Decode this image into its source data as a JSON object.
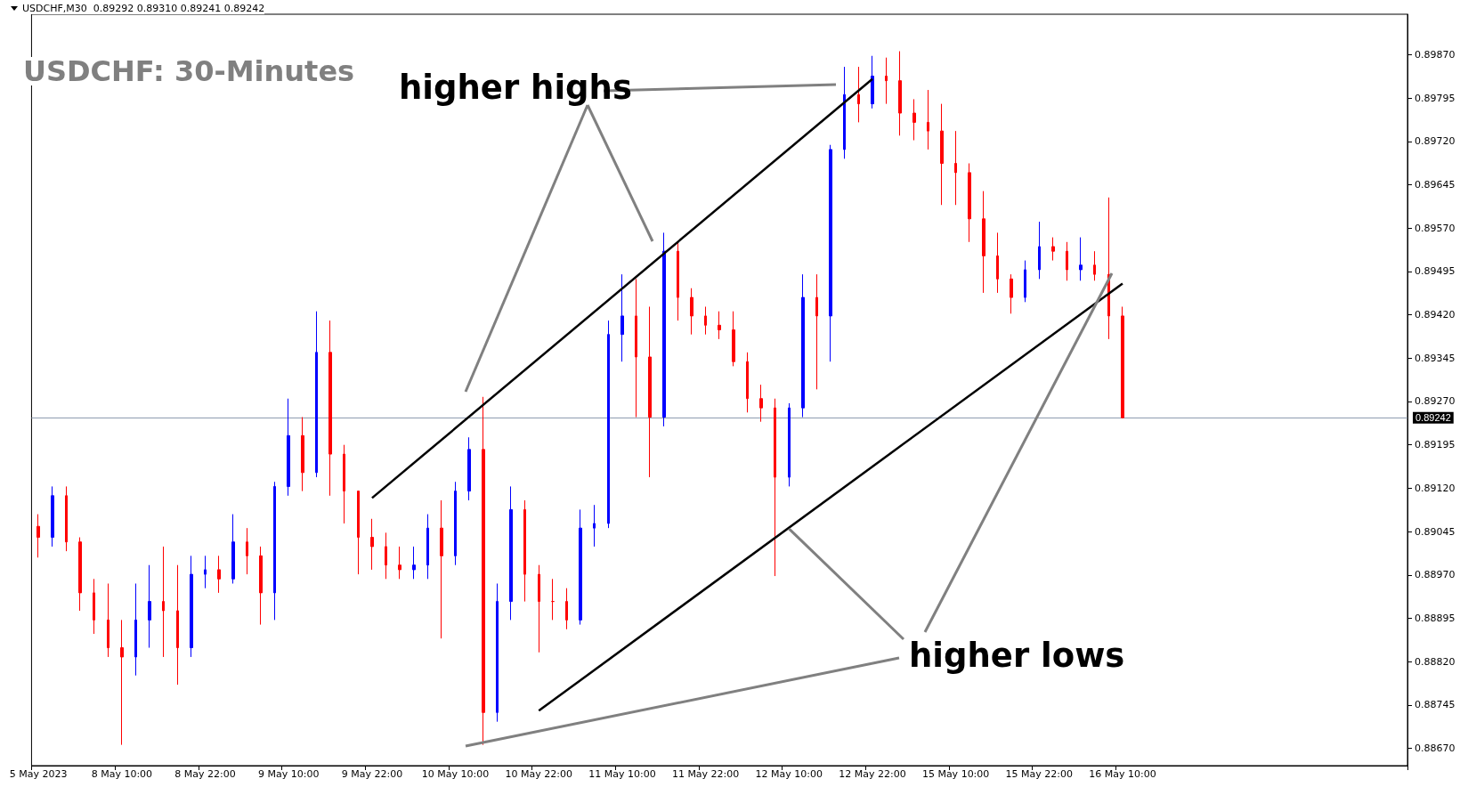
{
  "chart_data": {
    "type": "candlestick",
    "title": "USDCHF: 30-Minutes",
    "annotations": [
      "USDCHF,M30  0.89292 0.89310 0.89241 0.89242",
      "higher highs",
      {
        "text": "higher lows",
        "x": "12 May 10:00",
        "y": 0.8905
      }
    ],
    "categories": [
      "5 May 2023",
      null,
      null,
      null,
      null,
      null,
      "8 May 10:00",
      null,
      null,
      null,
      null,
      null,
      "8 May 22:00",
      null,
      null,
      null,
      null,
      null,
      "9 May 10:00",
      null,
      null,
      null,
      null,
      null,
      "9 May 22:00",
      null,
      null,
      null,
      null,
      null,
      "10 May 10:00",
      null,
      null,
      null,
      null,
      null,
      "10 May 22:00",
      null,
      null,
      null,
      null,
      null,
      "11 May 10:00",
      null,
      null,
      null,
      null,
      null,
      "11 May 22:00",
      null,
      null,
      null,
      null,
      null,
      "12 May 10:00",
      null,
      null,
      null,
      null,
      null,
      "12 May 22:00",
      null,
      null,
      null,
      null,
      null,
      "15 May 10:00",
      null,
      null,
      null,
      null,
      null,
      "15 May 22:00",
      null,
      null,
      null,
      null,
      null,
      "16 May 10:00",
      null,
      null,
      null,
      null,
      null,
      null,
      null,
      null,
      null,
      null,
      null,
      null,
      null,
      null,
      null,
      null,
      null,
      null,
      null,
      null
    ],
    "ohlc": [
      [
        0.89054,
        0.89075,
        0.89,
        0.89035
      ],
      [
        0.89035,
        0.89123,
        0.89019,
        0.89107
      ],
      [
        0.89107,
        0.89123,
        0.89011,
        0.89027
      ],
      [
        0.89027,
        0.89035,
        0.88908,
        0.88939
      ],
      [
        0.88939,
        0.88963,
        0.88868,
        0.88892
      ],
      [
        0.88892,
        0.88955,
        0.88828,
        0.88844
      ],
      [
        0.88844,
        0.88892,
        0.88676,
        0.88828
      ],
      [
        0.88828,
        0.88955,
        0.88796,
        0.88892
      ],
      [
        0.88892,
        0.88987,
        0.88844,
        0.88924
      ],
      [
        0.88924,
        0.89019,
        0.88828,
        0.88908
      ],
      [
        0.88908,
        0.88987,
        0.8878,
        0.88844
      ],
      [
        0.88844,
        0.89003,
        0.88828,
        0.88971
      ],
      [
        0.88971,
        0.89003,
        0.88947,
        0.88979
      ],
      [
        0.88979,
        0.89003,
        0.88939,
        0.88963
      ],
      [
        0.88963,
        0.89075,
        0.88955,
        0.89027
      ],
      [
        0.89027,
        0.89051,
        0.88971,
        0.89003
      ],
      [
        0.89003,
        0.89019,
        0.88884,
        0.88939
      ],
      [
        0.88939,
        0.89131,
        0.88892,
        0.89123
      ],
      [
        0.89123,
        0.89275,
        0.89107,
        0.89211
      ],
      [
        0.89211,
        0.89243,
        0.89115,
        0.89147
      ],
      [
        0.89147,
        0.89426,
        0.89139,
        0.89355
      ],
      [
        0.89355,
        0.8941,
        0.89107,
        0.89179
      ],
      [
        0.89179,
        0.89195,
        0.89059,
        0.89115
      ],
      [
        0.89115,
        0.89115,
        0.88971,
        0.89035
      ],
      [
        0.89035,
        0.89067,
        0.88979,
        0.89019
      ],
      [
        0.89019,
        0.89043,
        0.88963,
        0.88987
      ],
      [
        0.88987,
        0.89019,
        0.88963,
        0.88979
      ],
      [
        0.88979,
        0.89019,
        0.88963,
        0.88987
      ],
      [
        0.88987,
        0.89075,
        0.88963,
        0.89051
      ],
      [
        0.89051,
        0.89099,
        0.8886,
        0.89003
      ],
      [
        0.89003,
        0.89131,
        0.88987,
        0.89115
      ],
      [
        0.89115,
        0.89208,
        0.89099,
        0.89187
      ],
      [
        0.89187,
        0.89278,
        0.88676,
        0.88732
      ],
      [
        0.88732,
        0.88955,
        0.88716,
        0.88924
      ],
      [
        0.88924,
        0.89123,
        0.88892,
        0.89083
      ],
      [
        0.89083,
        0.89099,
        0.88924,
        0.88971
      ],
      [
        0.88971,
        0.88987,
        0.88836,
        0.88924
      ],
      [
        0.88924,
        0.88963,
        0.88892,
        0.88924
      ],
      [
        0.88924,
        0.88947,
        0.88876,
        0.88892
      ],
      [
        0.88892,
        0.89083,
        0.88884,
        0.89051
      ],
      [
        0.89051,
        0.89091,
        0.89019,
        0.89059
      ],
      [
        0.89059,
        0.8941,
        0.89051,
        0.89386
      ],
      [
        0.89386,
        0.8949,
        0.89339,
        0.89418
      ],
      [
        0.89418,
        0.89482,
        0.89243,
        0.89347
      ],
      [
        0.89347,
        0.89434,
        0.89139,
        0.89243
      ],
      [
        0.89243,
        0.89562,
        0.89227,
        0.8953
      ],
      [
        0.8953,
        0.89546,
        0.8941,
        0.8945
      ],
      [
        0.8945,
        0.89466,
        0.89386,
        0.89418
      ],
      [
        0.89418,
        0.89434,
        0.89386,
        0.89402
      ],
      [
        0.89402,
        0.89426,
        0.89378,
        0.89394
      ],
      [
        0.89394,
        0.89426,
        0.89331,
        0.89339
      ],
      [
        0.89339,
        0.89355,
        0.89251,
        0.89275
      ],
      [
        0.89275,
        0.89299,
        0.89235,
        0.89259
      ],
      [
        0.89259,
        0.89275,
        0.88968,
        0.89139
      ],
      [
        0.89139,
        0.89267,
        0.89123,
        0.89259
      ],
      [
        0.89259,
        0.8949,
        0.89243,
        0.8945
      ],
      [
        0.8945,
        0.8949,
        0.89291,
        0.89418
      ],
      [
        0.89418,
        0.89714,
        0.89339,
        0.89706
      ],
      [
        0.89706,
        0.89849,
        0.8969,
        0.89801
      ],
      [
        0.89801,
        0.89849,
        0.89753,
        0.89785
      ],
      [
        0.89785,
        0.89868,
        0.89777,
        0.89833
      ],
      [
        0.89833,
        0.89865,
        0.89785,
        0.89825
      ],
      [
        0.89825,
        0.89876,
        0.8973,
        0.89769
      ],
      [
        0.89769,
        0.89793,
        0.89722,
        0.89753
      ],
      [
        0.89753,
        0.89809,
        0.89706,
        0.89738
      ],
      [
        0.89738,
        0.89785,
        0.8961,
        0.89682
      ],
      [
        0.89682,
        0.89738,
        0.8961,
        0.89666
      ],
      [
        0.89666,
        0.89682,
        0.89546,
        0.89586
      ],
      [
        0.89586,
        0.89634,
        0.89458,
        0.89522
      ],
      [
        0.89522,
        0.89562,
        0.89458,
        0.89482
      ],
      [
        0.89482,
        0.8949,
        0.89422,
        0.8945
      ],
      [
        0.8945,
        0.89514,
        0.89442,
        0.89498
      ],
      [
        0.89498,
        0.89581,
        0.89482,
        0.89538
      ],
      [
        0.89538,
        0.89554,
        0.89514,
        0.8953
      ],
      [
        0.8953,
        0.89546,
        0.89479,
        0.89498
      ],
      [
        0.89498,
        0.89554,
        0.89479,
        0.89506
      ],
      [
        0.89506,
        0.8953,
        0.89479,
        0.8949
      ],
      [
        0.8949,
        0.89623,
        0.89378,
        0.89418
      ],
      [
        0.89418,
        0.89434,
        0.89241,
        0.89242
      ],
      null,
      null,
      null,
      null,
      null,
      null,
      null,
      null,
      null,
      null,
      null,
      null,
      null,
      null,
      null,
      null,
      null,
      null,
      null,
      null
    ],
    "colors": [
      "#ff0000",
      "#0000ff",
      "#ff0000",
      "#ff0000",
      "#ff0000",
      "#ff0000",
      "#ff0000",
      "#0000ff",
      "#0000ff",
      "#ff0000",
      "#ff0000",
      "#0000ff",
      "#0000ff",
      "#ff0000",
      "#0000ff",
      "#ff0000",
      "#ff0000",
      "#0000ff",
      "#0000ff",
      "#ff0000",
      "#0000ff",
      "#ff0000",
      "#ff0000",
      "#ff0000",
      "#ff0000",
      "#ff0000",
      "#ff0000",
      "#0000ff",
      "#0000ff",
      "#ff0000",
      "#0000ff",
      "#0000ff",
      "#ff0000",
      "#0000ff",
      "#0000ff",
      "#ff0000",
      "#ff0000",
      "#ff0000",
      "#ff0000",
      "#0000ff",
      "#0000ff",
      "#0000ff",
      "#0000ff",
      "#ff0000",
      "#ff0000",
      "#0000ff",
      "#ff0000",
      "#ff0000",
      "#ff0000",
      "#ff0000",
      "#ff0000",
      "#ff0000",
      "#ff0000",
      "#ff0000",
      "#0000ff",
      "#0000ff",
      "#ff0000",
      "#0000ff",
      "#0000ff",
      "#ff0000",
      "#0000ff",
      "#ff0000",
      "#ff0000",
      "#ff0000",
      "#ff0000",
      "#ff0000",
      "#ff0000",
      "#ff0000",
      "#ff0000",
      "#ff0000",
      "#ff0000",
      "#0000ff",
      "#0000ff",
      "#ff0000",
      "#ff0000",
      "#0000ff",
      "#ff0000",
      "#ff0000",
      "#ff0000",
      null,
      null,
      null,
      null,
      null,
      null,
      null,
      null,
      null,
      null,
      null,
      null,
      null,
      null,
      null,
      null,
      null,
      null,
      null,
      null
    ],
    "series": [
      {
        "type": "line",
        "color": "#000000",
        "x": [
          "9 May 22:00",
          "12 May 22:00"
        ],
        "values": [
          0.89103,
          0.89828
        ]
      },
      {
        "type": "line",
        "color": "#000000",
        "x": [
          "10 May 22:00",
          "16 May 10:00"
        ],
        "values": [
          0.88735,
          0.89474
        ]
      }
    ],
    "ylim": [
      0.8864,
      0.8994
    ],
    "yticks": [
      {
        "value": 0.8867,
        "label": "0.88670"
      },
      {
        "value": 0.88745,
        "label": "0.88745"
      },
      {
        "value": 0.8882,
        "label": "0.88820"
      },
      {
        "value": 0.88895,
        "label": "0.88895"
      },
      {
        "value": 0.8897,
        "label": "0.88970"
      },
      {
        "value": 0.89045,
        "label": "0.89045"
      },
      {
        "value": 0.8912,
        "label": "0.89120"
      },
      {
        "value": 0.89195,
        "label": "0.89195"
      },
      {
        "value": 0.8927,
        "label": "0.89270"
      },
      {
        "value": 0.89345,
        "label": "0.89345"
      },
      {
        "value": 0.8942,
        "label": "0.89420"
      },
      {
        "value": 0.89495,
        "label": "0.89495"
      },
      {
        "value": 0.8957,
        "label": "0.89570"
      },
      {
        "value": 0.89645,
        "label": "0.89645"
      },
      {
        "value": 0.8972,
        "label": "0.89720"
      },
      {
        "value": 0.89795,
        "label": "0.89795"
      },
      {
        "value": 0.8987,
        "label": "0.89870"
      }
    ],
    "ref_lines": [
      {
        "axis": "y",
        "value": 0.89242,
        "label": "0.89242",
        "color": "#8e9cb0"
      }
    ]
  }
}
